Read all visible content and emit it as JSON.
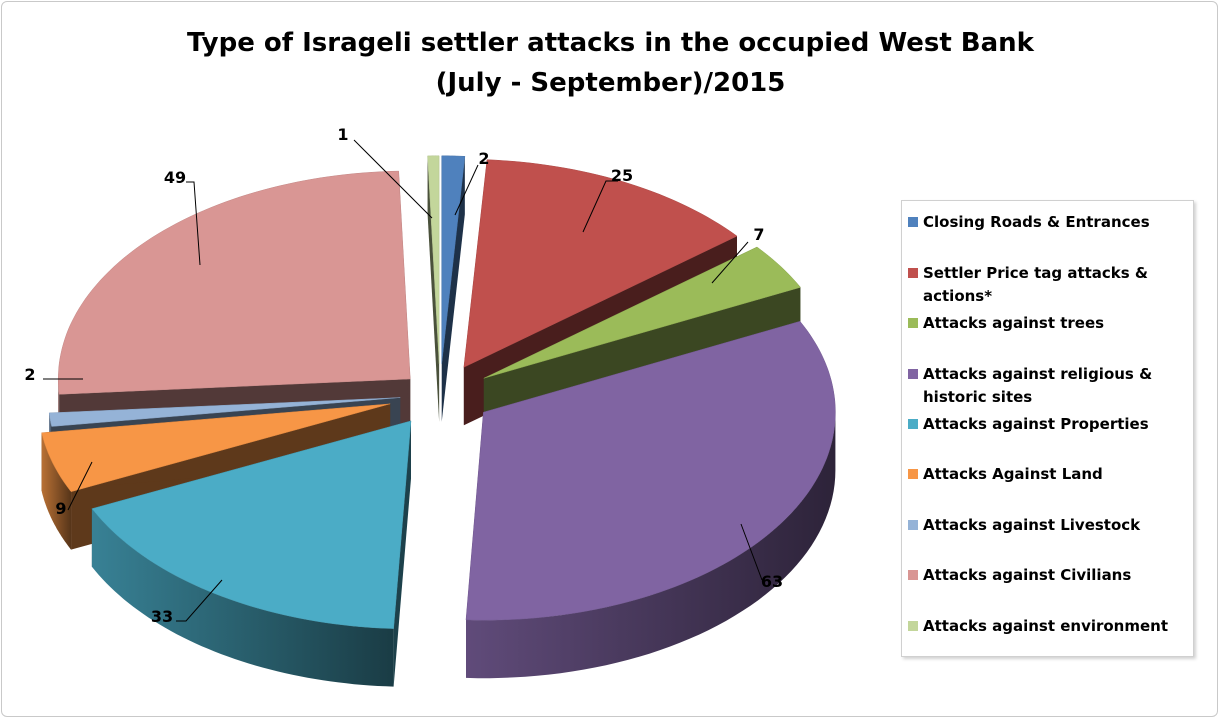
{
  "chart_data": {
    "type": "pie",
    "title": "Type of Isrageli settler attacks in the occupied West Bank",
    "subtitle": "(July - September)/2015",
    "legend_position": "right",
    "slices": [
      {
        "label": "Closing Roads & Entrances",
        "value": 2,
        "color": "#4F81BD"
      },
      {
        "label": "Settler Price tag attacks & actions*",
        "value": 25,
        "color": "#C0504D"
      },
      {
        "label": "Attacks against trees",
        "value": 7,
        "color": "#9BBB59"
      },
      {
        "label": "Attacks against religious & historic sites",
        "value": 63,
        "color": "#8064A2"
      },
      {
        "label": "Attacks against Properties",
        "value": 33,
        "color": "#4BACC6"
      },
      {
        "label": "Attacks Against Land",
        "value": 9,
        "color": "#F79646"
      },
      {
        "label": "Attacks against Livestock",
        "value": 2,
        "color": "#95B3D7"
      },
      {
        "label": "Attacks against Civilians",
        "value": 49,
        "color": "#D99694"
      },
      {
        "label": "Attacks against environment",
        "value": 1,
        "color": "#C3D69B"
      }
    ]
  }
}
